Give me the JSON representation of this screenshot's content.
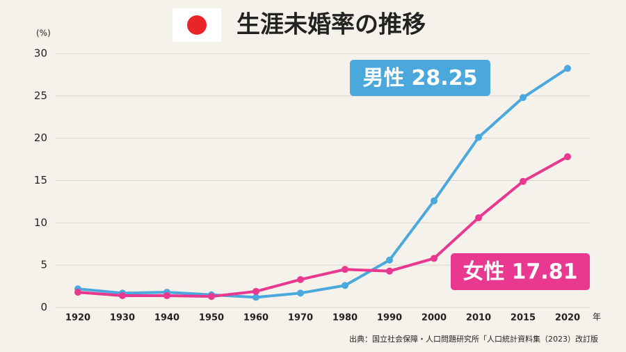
{
  "chart_data": {
    "type": "line",
    "title": "生涯未婚率の推移",
    "y_unit": "(%)",
    "x_unit": "年",
    "source": "出典：国立社会保障・人口問題研究所「人口統計資料集（2023）改訂版",
    "categories": [
      "1920",
      "1930",
      "1940",
      "1950",
      "1960",
      "1970",
      "1980",
      "1990",
      "2000",
      "2010",
      "2015",
      "2020"
    ],
    "series": [
      {
        "name": "男性",
        "color": "#4aa8dc",
        "values": [
          2.2,
          1.7,
          1.8,
          1.5,
          1.2,
          1.7,
          2.6,
          5.6,
          12.6,
          20.1,
          24.8,
          28.25
        ]
      },
      {
        "name": "女性",
        "color": "#e8388f",
        "values": [
          1.8,
          1.4,
          1.4,
          1.3,
          1.9,
          3.3,
          4.5,
          4.3,
          5.8,
          10.6,
          14.9,
          17.81
        ]
      }
    ],
    "ylim": [
      0,
      30
    ],
    "yticks": [
      0,
      5,
      10,
      15,
      20,
      25,
      30
    ],
    "grid": true
  }
}
